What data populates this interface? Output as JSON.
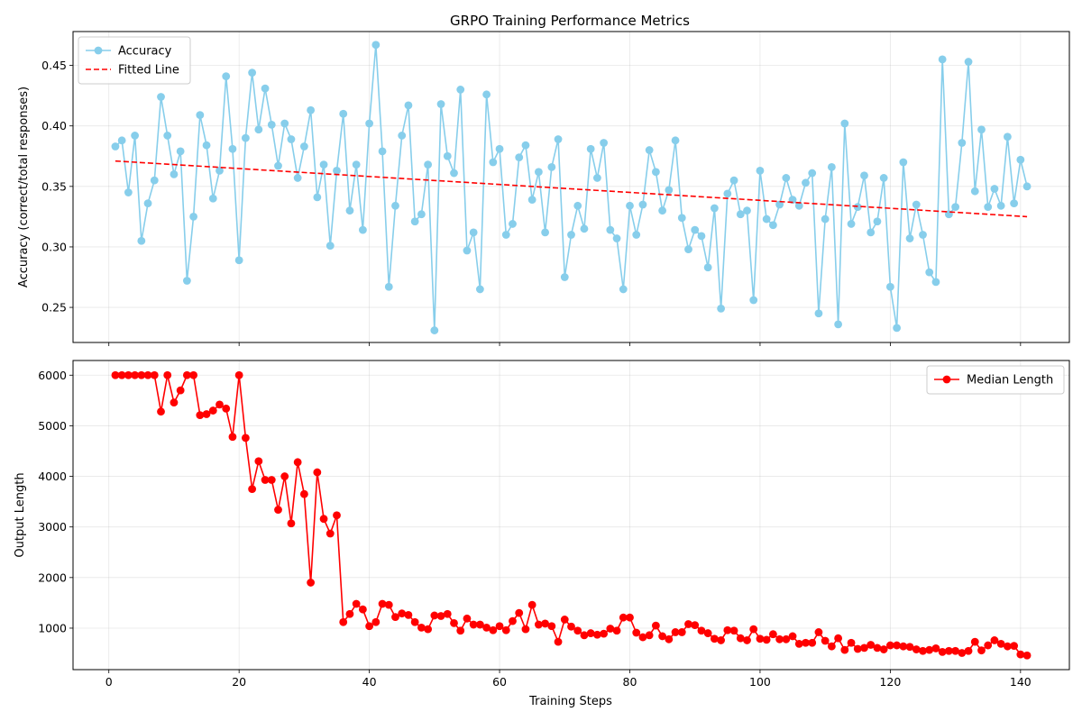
{
  "title": "GRPO Training Performance Metrics",
  "chart_data": [
    {
      "type": "line",
      "title": "GRPO Training Performance Metrics",
      "xlabel": "",
      "ylabel": "Accuracy (correct/total responses)",
      "xlim": [
        -5.5,
        147.5
      ],
      "ylim": [
        0.221,
        0.478
      ],
      "grid": true,
      "legend_placement": "top-left",
      "y_ticks": [
        0.25,
        0.3,
        0.35,
        0.4,
        0.45
      ],
      "y_tick_labels": [
        "0.25",
        "0.30",
        "0.35",
        "0.40",
        "0.45"
      ],
      "series": [
        {
          "name": "Accuracy",
          "color": "#87ceeb",
          "marker": "circle",
          "line": "solid",
          "x_start": 1,
          "values": [
            0.383,
            0.388,
            0.345,
            0.392,
            0.305,
            0.336,
            0.355,
            0.424,
            0.392,
            0.36,
            0.379,
            0.272,
            0.325,
            0.409,
            0.384,
            0.34,
            0.363,
            0.441,
            0.381,
            0.289,
            0.39,
            0.444,
            0.397,
            0.431,
            0.401,
            0.367,
            0.402,
            0.389,
            0.357,
            0.383,
            0.413,
            0.341,
            0.368,
            0.301,
            0.363,
            0.41,
            0.33,
            0.368,
            0.314,
            0.402,
            0.467,
            0.379,
            0.267,
            0.334,
            0.392,
            0.417,
            0.321,
            0.327,
            0.368,
            0.231,
            0.418,
            0.375,
            0.361,
            0.43,
            0.297,
            0.312,
            0.265,
            0.426,
            0.37,
            0.381,
            0.31,
            0.319,
            0.374,
            0.384,
            0.339,
            0.362,
            0.312,
            0.366,
            0.389,
            0.275,
            0.31,
            0.334,
            0.315,
            0.381,
            0.357,
            0.386,
            0.314,
            0.307,
            0.265,
            0.334,
            0.31,
            0.335,
            0.38,
            0.362,
            0.33,
            0.347,
            0.388,
            0.324,
            0.298,
            0.314,
            0.309,
            0.283,
            0.332,
            0.249,
            0.344,
            0.355,
            0.327,
            0.33,
            0.256,
            0.363,
            0.323,
            0.318,
            0.335,
            0.357,
            0.339,
            0.334,
            0.353,
            0.361,
            0.245,
            0.323,
            0.366,
            0.236,
            0.402,
            0.319,
            0.333,
            0.359,
            0.312,
            0.321,
            0.357,
            0.267,
            0.233,
            0.37,
            0.307,
            0.335,
            0.31,
            0.279,
            0.271,
            0.455,
            0.327,
            0.333,
            0.386,
            0.453,
            0.346,
            0.397,
            0.333,
            0.348,
            0.334,
            0.391,
            0.336,
            0.372,
            0.35
          ]
        },
        {
          "name": "Fitted Line",
          "color": "#ff0000",
          "marker": "none",
          "line": "dashed",
          "x": [
            1,
            141
          ],
          "values": [
            0.371,
            0.325
          ]
        }
      ]
    },
    {
      "type": "line",
      "title": "",
      "xlabel": "Training Steps",
      "ylabel": "Output Length",
      "xlim": [
        -5.5,
        147.5
      ],
      "ylim": [
        180,
        6290
      ],
      "grid": true,
      "legend_placement": "top-right",
      "x_ticks": [
        0,
        20,
        40,
        60,
        80,
        100,
        120,
        140
      ],
      "x_tick_labels": [
        "0",
        "20",
        "40",
        "60",
        "80",
        "100",
        "120",
        "140"
      ],
      "y_ticks": [
        1000,
        2000,
        3000,
        4000,
        5000,
        6000
      ],
      "y_tick_labels": [
        "1000",
        "2000",
        "3000",
        "4000",
        "5000",
        "6000"
      ],
      "series": [
        {
          "name": "Median Length",
          "color": "#ff0000",
          "marker": "circle",
          "line": "solid",
          "x_start": 1,
          "values": [
            6000,
            6000,
            6000,
            6000,
            6000,
            6000,
            6000,
            5280,
            6000,
            5460,
            5700,
            6000,
            6000,
            5210,
            5230,
            5300,
            5420,
            5340,
            4780,
            6000,
            4760,
            3750,
            4300,
            3930,
            3930,
            3340,
            4000,
            3070,
            4280,
            3650,
            1900,
            4080,
            3160,
            2870,
            3230,
            1120,
            1280,
            1480,
            1370,
            1040,
            1120,
            1480,
            1460,
            1220,
            1290,
            1260,
            1120,
            1010,
            980,
            1250,
            1240,
            1280,
            1100,
            950,
            1190,
            1070,
            1070,
            1010,
            960,
            1040,
            960,
            1140,
            1300,
            980,
            1460,
            1070,
            1090,
            1040,
            730,
            1170,
            1030,
            950,
            860,
            900,
            870,
            890,
            990,
            950,
            1210,
            1210,
            910,
            820,
            860,
            1050,
            840,
            780,
            920,
            920,
            1080,
            1060,
            950,
            900,
            790,
            760,
            960,
            950,
            800,
            760,
            980,
            790,
            770,
            880,
            780,
            780,
            840,
            690,
            710,
            710,
            920,
            750,
            640,
            800,
            570,
            710,
            590,
            610,
            670,
            610,
            580,
            660,
            660,
            640,
            630,
            580,
            550,
            570,
            600,
            530,
            550,
            550,
            510,
            550,
            730,
            560,
            660,
            760,
            690,
            640,
            650,
            480,
            460
          ]
        }
      ]
    }
  ]
}
